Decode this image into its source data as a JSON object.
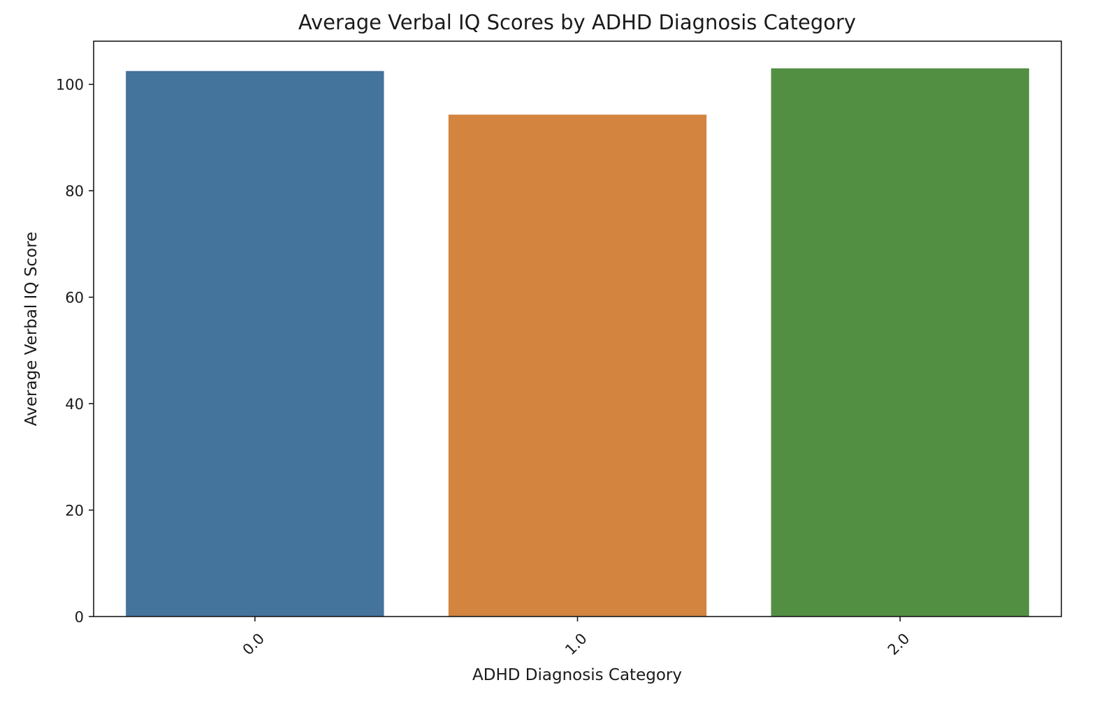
{
  "chart_data": {
    "type": "bar",
    "title": "Average Verbal IQ Scores by ADHD Diagnosis Category",
    "xlabel": "ADHD Diagnosis Category",
    "ylabel": "Average Verbal IQ Score",
    "categories": [
      "0.0",
      "1.0",
      "2.0"
    ],
    "values": [
      102.5,
      94.3,
      103.0
    ],
    "colors": [
      "#44739c",
      "#d3843f",
      "#538f43"
    ],
    "ylim": [
      0,
      108.1
    ],
    "yticks": [
      0,
      20,
      40,
      60,
      80,
      100
    ],
    "ytick_labels": [
      "0",
      "20",
      "40",
      "60",
      "80",
      "100"
    ],
    "xtick_rotation": -45,
    "grid": false,
    "legend": false
  }
}
